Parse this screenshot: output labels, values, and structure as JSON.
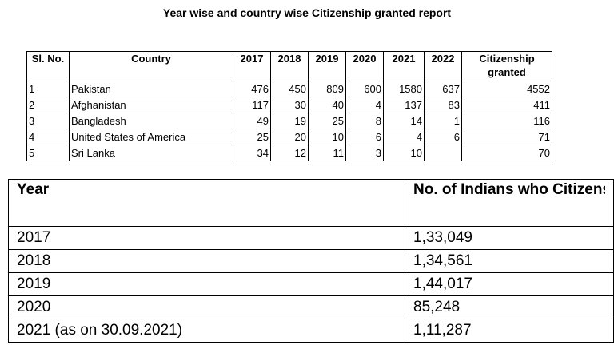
{
  "report_title": "Year wise and country wise Citizenship granted report",
  "table1": {
    "headers": [
      "Sl. No.",
      "Country",
      "2017",
      "2018",
      "2019",
      "2020",
      "2021",
      "2022",
      "Citizenship granted"
    ],
    "rows": [
      [
        "1",
        "Pakistan",
        "476",
        "450",
        "809",
        "600",
        "1580",
        "637",
        "4552"
      ],
      [
        "2",
        "Afghanistan",
        "117",
        "30",
        "40",
        "4",
        "137",
        "83",
        "411"
      ],
      [
        "3",
        "Bangladesh",
        "49",
        "19",
        "25",
        "8",
        "14",
        "1",
        "116"
      ],
      [
        "4",
        "United States of America",
        "25",
        "20",
        "10",
        "6",
        "4",
        "6",
        "71"
      ],
      [
        "5",
        "Sri Lanka",
        "34",
        "12",
        "11",
        "3",
        "10",
        "",
        "70"
      ]
    ]
  },
  "table2": {
    "headers": [
      "Year",
      "No. of Indians who Citizenship"
    ],
    "rows": [
      [
        "2017",
        "1,33,049"
      ],
      [
        "2018",
        "1,34,561"
      ],
      [
        "2019",
        "1,44,017"
      ],
      [
        "2020",
        "85,248"
      ],
      [
        "2021  (as on 30.09.2021)",
        "1,11,287"
      ]
    ]
  }
}
